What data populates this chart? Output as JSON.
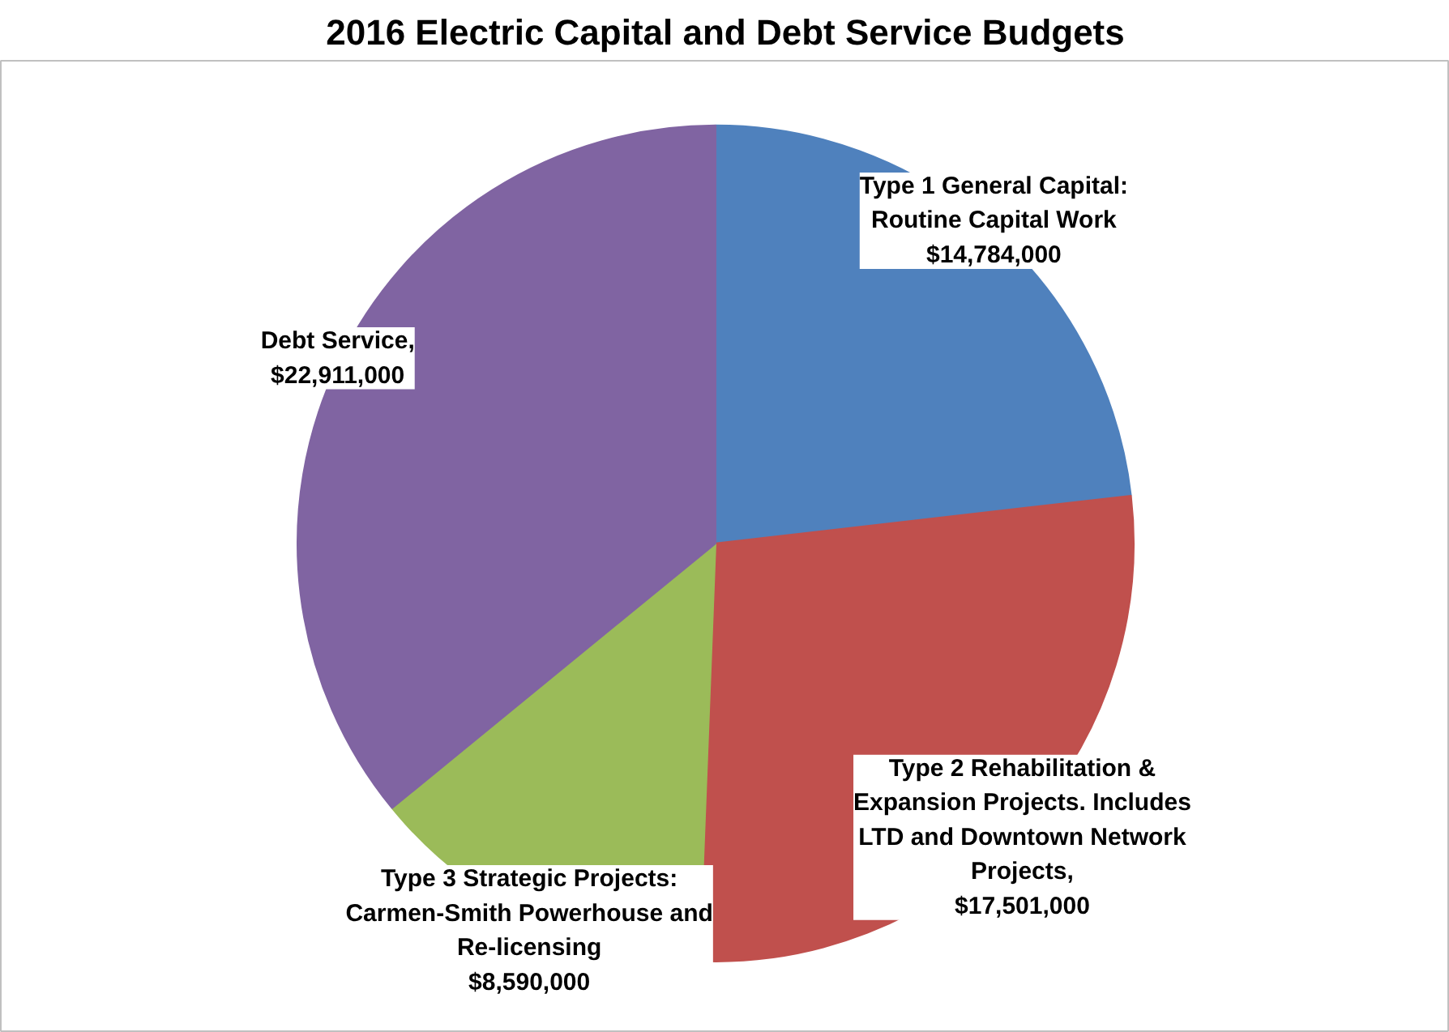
{
  "chart_data": {
    "type": "pie",
    "title": "2016 Electric Capital and Debt Service Budgets",
    "categories": [
      "Type 1 General Capital: Routine Capital Work",
      "Type 2 Rehabilitation & Expansion Projects. Includes LTD and Downtown Network Projects",
      "Type 3 Strategic Projects: Carmen-Smith Powerhouse and Re-licensing",
      "Debt Service"
    ],
    "values": [
      14784000,
      17501000,
      8590000,
      22911000
    ],
    "value_labels": [
      "$14,784,000",
      ", $17,501,000",
      "$8,590,000",
      ", $22,911,000"
    ],
    "colors": [
      "#4f81bd",
      "#c0504d",
      "#9bbb59",
      "#8064a2"
    ],
    "legend": false
  }
}
